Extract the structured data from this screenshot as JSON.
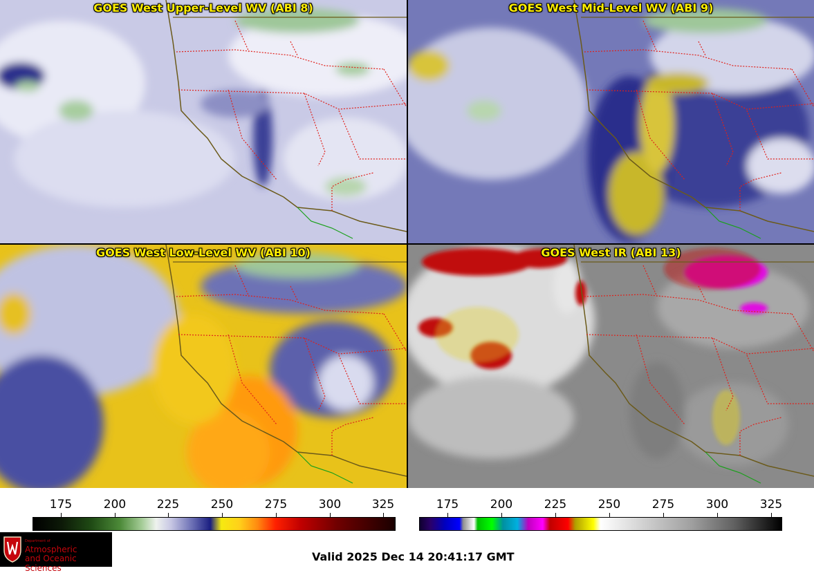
{
  "panels": [
    {
      "title": "GOES West Upper-Level WV (ABI 8)",
      "palette": "wv-upper"
    },
    {
      "title": "GOES West Mid-Level WV (ABI 9)",
      "palette": "wv-mid"
    },
    {
      "title": "GOES West Low-Level WV (ABI 10)",
      "palette": "wv-low"
    },
    {
      "title": "GOES West IR (ABI 13)",
      "palette": "ir"
    }
  ],
  "colorbars": [
    {
      "ticks": [
        "175",
        "200",
        "225",
        "250",
        "275",
        "300",
        "325"
      ]
    },
    {
      "ticks": [
        "175",
        "200",
        "225",
        "250",
        "275",
        "300",
        "325"
      ]
    }
  ],
  "logo": {
    "dept": "Department of",
    "line1": "Atmospheric",
    "line2": "and Oceanic Sciences",
    "seal_icon": "uw-crest-icon"
  },
  "footer": {
    "valid": "Valid 2025 Dec 14 20:41:17 GMT"
  },
  "colors": {
    "border_state": "#e0201a",
    "coast": "#6b5a1a",
    "mexico_border": "#1aa01a",
    "title_text": "#ffee00"
  }
}
